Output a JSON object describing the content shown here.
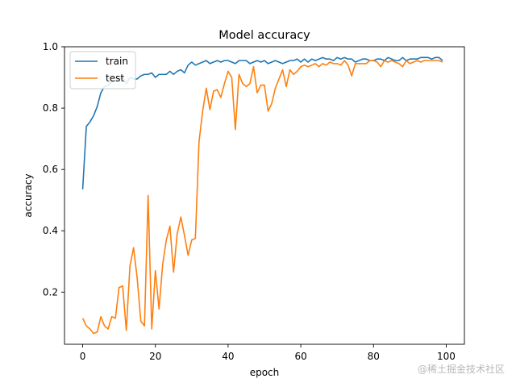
{
  "chart_data": {
    "type": "line",
    "title": "Model accuracy",
    "xlabel": "epoch",
    "ylabel": "accuracy",
    "xlim": [
      -5,
      105
    ],
    "ylim": [
      0.03,
      1.0
    ],
    "xticks": [
      0,
      20,
      40,
      60,
      80,
      100
    ],
    "xtick_labels": [
      "0",
      "20",
      "40",
      "60",
      "80",
      "100"
    ],
    "yticks": [
      0.2,
      0.4,
      0.6,
      0.8,
      1.0
    ],
    "ytick_labels": [
      "0.2",
      "0.4",
      "0.6",
      "0.8",
      "1.0"
    ],
    "grid": false,
    "legend_position": "top-left",
    "x": [
      0,
      1,
      2,
      3,
      4,
      5,
      6,
      7,
      8,
      9,
      10,
      11,
      12,
      13,
      14,
      15,
      16,
      17,
      18,
      19,
      20,
      21,
      22,
      23,
      24,
      25,
      26,
      27,
      28,
      29,
      30,
      31,
      32,
      33,
      34,
      35,
      36,
      37,
      38,
      39,
      40,
      41,
      42,
      43,
      44,
      45,
      46,
      47,
      48,
      49,
      50,
      51,
      52,
      53,
      54,
      55,
      56,
      57,
      58,
      59,
      60,
      61,
      62,
      63,
      64,
      65,
      66,
      67,
      68,
      69,
      70,
      71,
      72,
      73,
      74,
      75,
      76,
      77,
      78,
      79,
      80,
      81,
      82,
      83,
      84,
      85,
      86,
      87,
      88,
      89,
      90,
      91,
      92,
      93,
      94,
      95,
      96,
      97,
      98,
      99
    ],
    "series": [
      {
        "name": "train",
        "color": "#1f77b4",
        "values": [
          0.535,
          0.74,
          0.755,
          0.775,
          0.805,
          0.85,
          0.87,
          0.875,
          0.885,
          0.89,
          0.895,
          0.9,
          0.88,
          0.9,
          0.895,
          0.895,
          0.905,
          0.91,
          0.91,
          0.915,
          0.9,
          0.91,
          0.91,
          0.91,
          0.92,
          0.91,
          0.92,
          0.925,
          0.915,
          0.94,
          0.95,
          0.94,
          0.945,
          0.95,
          0.955,
          0.945,
          0.95,
          0.955,
          0.95,
          0.955,
          0.955,
          0.95,
          0.945,
          0.955,
          0.955,
          0.955,
          0.945,
          0.95,
          0.955,
          0.95,
          0.955,
          0.945,
          0.95,
          0.955,
          0.95,
          0.945,
          0.95,
          0.955,
          0.955,
          0.96,
          0.95,
          0.96,
          0.95,
          0.96,
          0.955,
          0.96,
          0.965,
          0.96,
          0.96,
          0.955,
          0.965,
          0.96,
          0.965,
          0.96,
          0.96,
          0.95,
          0.955,
          0.96,
          0.96,
          0.955,
          0.955,
          0.96,
          0.96,
          0.955,
          0.965,
          0.96,
          0.955,
          0.955,
          0.965,
          0.955,
          0.96,
          0.96,
          0.96,
          0.965,
          0.965,
          0.965,
          0.96,
          0.965,
          0.965,
          0.955
        ]
      },
      {
        "name": "test",
        "color": "#ff7f0e",
        "values": [
          0.115,
          0.09,
          0.08,
          0.065,
          0.07,
          0.12,
          0.09,
          0.08,
          0.12,
          0.115,
          0.215,
          0.22,
          0.075,
          0.285,
          0.345,
          0.245,
          0.105,
          0.09,
          0.515,
          0.08,
          0.27,
          0.145,
          0.29,
          0.37,
          0.415,
          0.265,
          0.39,
          0.445,
          0.385,
          0.32,
          0.37,
          0.375,
          0.69,
          0.79,
          0.865,
          0.795,
          0.855,
          0.86,
          0.835,
          0.88,
          0.92,
          0.9,
          0.73,
          0.91,
          0.88,
          0.87,
          0.88,
          0.935,
          0.85,
          0.875,
          0.875,
          0.79,
          0.815,
          0.865,
          0.895,
          0.925,
          0.87,
          0.925,
          0.91,
          0.92,
          0.935,
          0.94,
          0.935,
          0.94,
          0.945,
          0.935,
          0.945,
          0.94,
          0.95,
          0.945,
          0.945,
          0.94,
          0.955,
          0.94,
          0.905,
          0.945,
          0.945,
          0.945,
          0.945,
          0.955,
          0.955,
          0.95,
          0.935,
          0.955,
          0.95,
          0.955,
          0.95,
          0.945,
          0.935,
          0.955,
          0.945,
          0.95,
          0.955,
          0.95,
          0.955,
          0.955,
          0.955,
          0.955,
          0.955,
          0.95
        ]
      }
    ]
  },
  "watermark": "@稀土掘金技术社区"
}
